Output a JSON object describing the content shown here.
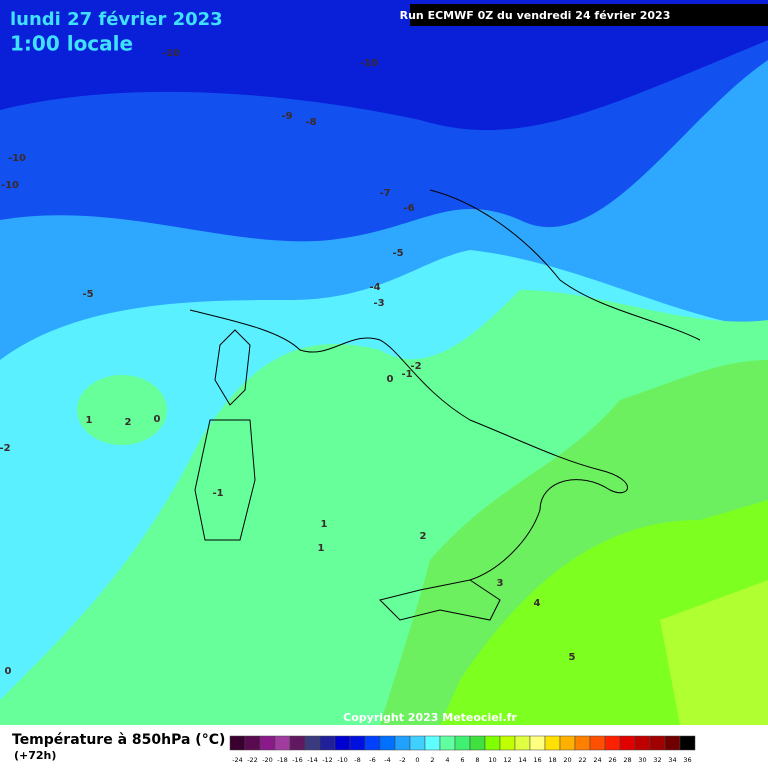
{
  "header": {
    "date": "lundi 27 février 2023",
    "time": "1:00 locale",
    "run": "Run ECMWF 0Z du vendredi 24 février 2023"
  },
  "contour_labels": [
    "-10",
    "-10",
    "-9",
    "-8",
    "-10",
    "-10",
    "-7",
    "-6",
    "-5",
    "-5",
    "-4",
    "-3",
    "-2",
    "-1",
    "0",
    "1",
    "2",
    "0",
    "-2",
    "-1",
    "1",
    "1",
    "2",
    "3",
    "4",
    "5",
    "0"
  ],
  "footer": {
    "title": "Température à 850hPa (°C)",
    "lead": "(+72h)",
    "copyright": "Copyright 2023 Meteociel.fr"
  },
  "legend": {
    "ticks": [
      "-24",
      "-22",
      "-20",
      "-18",
      "-16",
      "-14",
      "-12",
      "-10",
      "-8",
      "-6",
      "-4",
      "-2",
      "0",
      "2",
      "4",
      "6",
      "8",
      "10",
      "12",
      "14",
      "16",
      "18",
      "20",
      "22",
      "24",
      "26",
      "28",
      "30",
      "32",
      "34",
      "36"
    ],
    "colors": [
      "#3a0030",
      "#5a0a50",
      "#8a1a8a",
      "#a03ca0",
      "#601860",
      "#3a3a80",
      "#20209a",
      "#0000d0",
      "#0010e0",
      "#0040ff",
      "#0070ff",
      "#20a0ff",
      "#40d0ff",
      "#60ffff",
      "#60ffa0",
      "#40f070",
      "#40e040",
      "#80ff00",
      "#c0ff00",
      "#e0ff40",
      "#ffff80",
      "#ffe000",
      "#ffb000",
      "#ff8000",
      "#ff5000",
      "#ff2000",
      "#e00000",
      "#c00000",
      "#a00000",
      "#700000",
      "#000000"
    ]
  }
}
